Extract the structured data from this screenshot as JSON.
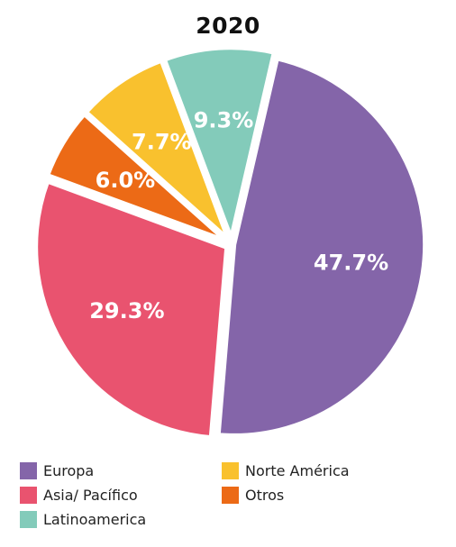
{
  "chart_data": {
    "type": "pie",
    "title": "2020",
    "slices": [
      {
        "label": "Europa",
        "value": 47.7,
        "value_label": "47.7%",
        "color": "#8465A9"
      },
      {
        "label": "Asia/ Pacífico",
        "value": 29.3,
        "value_label": "29.3%",
        "color": "#E9536F"
      },
      {
        "label": "Otros",
        "value": 6.0,
        "value_label": "6.0%",
        "color": "#EC6A16"
      },
      {
        "label": "Norte América",
        "value": 7.7,
        "value_label": "7.7%",
        "color": "#F9C12E"
      },
      {
        "label": "Latinoamerica",
        "value": 9.3,
        "value_label": "9.3%",
        "color": "#83CBBA"
      }
    ],
    "legend": {
      "placement": "bottom",
      "order": [
        "Europa",
        "Asia/ Pacífico",
        "Latinoamerica",
        "Norte América",
        "Otros"
      ]
    }
  }
}
